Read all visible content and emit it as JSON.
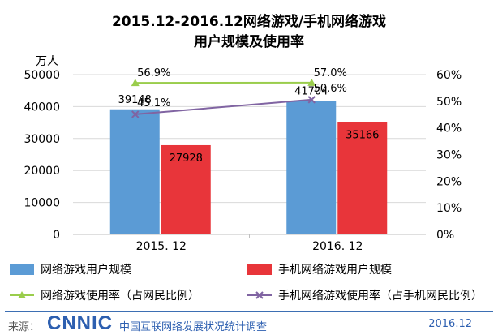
{
  "chart_data": {
    "type": "bar",
    "title_line1": "2015.12-2016.12网络游戏/手机网络游戏",
    "title_line2": "用户规模及使用率",
    "y_unit_label": "万人",
    "categories": [
      "2015. 12",
      "2016. 12"
    ],
    "ylim": [
      0,
      50000
    ],
    "yticks": [
      0,
      10000,
      20000,
      30000,
      40000,
      50000
    ],
    "y2lim": [
      0,
      60
    ],
    "y2ticks": [
      "0%",
      "10%",
      "20%",
      "30%",
      "40%",
      "50%",
      "60%"
    ],
    "bar_series": [
      {
        "name": "网络游戏用户规模",
        "values": [
          39148,
          41704
        ],
        "labels": [
          "39148",
          "41704"
        ],
        "color": "#5b9bd5"
      },
      {
        "name": "手机网络游戏用户规模",
        "values": [
          27928,
          35166
        ],
        "labels": [
          "27928",
          "35166"
        ],
        "color": "#e8353a"
      }
    ],
    "line_series": [
      {
        "name": "网络游戏使用率（占网民比例）",
        "values": [
          56.9,
          57.0
        ],
        "labels": [
          "56.9%",
          "57.0%"
        ],
        "color": "#9acd4c",
        "marker": "triangle"
      },
      {
        "name": "手机网络游戏使用率（占手机网民比例）",
        "values": [
          45.1,
          50.6
        ],
        "labels": [
          "45.1%",
          "50.6%"
        ],
        "color": "#8064a2",
        "marker": "x"
      }
    ]
  },
  "footer": {
    "source_label": "来源：",
    "logo_text": "CNNIC",
    "org_name": "中国互联网络发展状况统计调查",
    "date": "2016.12"
  }
}
